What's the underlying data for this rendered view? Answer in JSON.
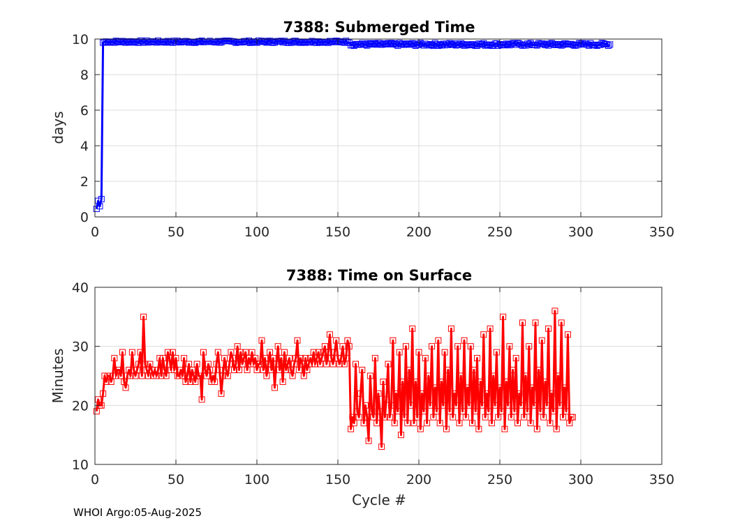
{
  "footer": "WHOI Argo:05-Aug-2025",
  "chart_data": [
    {
      "type": "line",
      "title": "7388: Submerged Time",
      "xlabel": "",
      "ylabel": "days",
      "xlim": [
        0,
        350
      ],
      "ylim": [
        0,
        10
      ],
      "xticks": [
        "0",
        "50",
        "100",
        "150",
        "200",
        "250",
        "300",
        "350"
      ],
      "yticks": [
        "0",
        "2",
        "4",
        "6",
        "8",
        "10"
      ],
      "grid": true,
      "color": "#0000ff",
      "marker": "square",
      "series": [
        {
          "name": "Submerged Time",
          "segments": [
            {
              "x_start": 1,
              "x_end": 1,
              "y": 0.45
            },
            {
              "x_start": 2,
              "x_end": 2,
              "y": 0.9
            },
            {
              "x_start": 3,
              "x_end": 3,
              "y": 0.6
            },
            {
              "x_start": 4,
              "x_end": 4,
              "y": 1.0
            },
            {
              "x_start": 5,
              "x_end": 5,
              "y": 9.8
            },
            {
              "x_start": 6,
              "x_end": 157,
              "y": 9.85,
              "jitter": 0.06
            },
            {
              "x_start": 158,
              "x_end": 318,
              "y": 9.7,
              "jitter": 0.08
            }
          ]
        }
      ]
    },
    {
      "type": "line",
      "title": "7388: Time on Surface",
      "xlabel": "Cycle #",
      "ylabel": "Minutes",
      "xlim": [
        0,
        350
      ],
      "ylim": [
        10,
        40
      ],
      "xticks": [
        "0",
        "50",
        "100",
        "150",
        "200",
        "250",
        "300",
        "350"
      ],
      "yticks": [
        "10",
        "20",
        "30",
        "40"
      ],
      "grid": true,
      "color": "#ff0000",
      "marker": "square",
      "series": [
        {
          "name": "Time on Surface",
          "values": [
            19,
            21,
            20,
            20,
            22,
            25,
            24,
            25,
            25,
            24,
            25,
            28,
            25,
            26,
            26,
            25,
            29,
            24,
            23,
            25,
            26,
            25,
            29,
            26,
            25,
            26,
            27,
            29,
            25,
            35,
            27,
            26,
            25,
            27,
            26,
            25,
            26,
            25,
            26,
            28,
            25,
            28,
            26,
            25,
            29,
            28,
            26,
            29,
            26,
            28,
            25,
            25,
            26,
            25,
            28,
            24,
            25,
            27,
            24,
            26,
            25,
            24,
            27,
            25,
            25,
            21,
            29,
            26,
            25,
            27,
            26,
            24,
            25,
            24,
            27,
            29,
            26,
            22,
            25,
            28,
            26,
            25,
            27,
            29,
            28,
            26,
            27,
            30,
            26,
            29,
            27,
            28,
            29,
            26,
            28,
            27,
            29,
            27,
            28,
            26,
            27,
            27,
            31,
            26,
            28,
            25,
            27,
            29,
            26,
            28,
            23,
            27,
            30,
            26,
            28,
            24,
            29,
            26,
            27,
            28,
            26,
            25,
            27,
            28,
            31,
            26,
            28,
            27,
            25,
            28,
            26,
            27,
            28,
            27,
            29,
            27,
            28,
            29,
            27,
            28,
            29,
            30,
            27,
            29,
            32,
            28,
            27,
            29,
            31,
            28,
            27,
            28,
            30,
            27,
            28,
            31,
            30,
            16,
            18,
            17,
            27,
            19,
            18,
            22,
            26,
            17,
            20,
            18,
            14,
            25,
            19,
            18,
            28,
            17,
            22,
            19,
            13,
            24,
            18,
            21,
            27,
            18,
            20,
            31,
            17,
            22,
            19,
            29,
            15,
            24,
            18,
            30,
            17,
            26,
            20,
            33,
            17,
            24,
            18,
            29,
            16,
            22,
            19,
            28,
            17,
            25,
            20,
            30,
            18,
            23,
            19,
            31,
            17,
            24,
            20,
            29,
            16,
            26,
            19,
            33,
            18,
            22,
            20,
            30,
            17,
            25,
            19,
            31,
            18,
            23,
            20,
            30,
            17,
            26,
            19,
            28,
            16,
            24,
            20,
            32,
            18,
            22,
            19,
            33,
            17,
            25,
            20,
            29,
            18,
            23,
            19,
            35,
            16,
            24,
            20,
            30,
            18,
            26,
            19,
            28,
            17,
            22,
            20,
            34,
            18,
            25,
            19,
            30,
            17,
            23,
            20,
            34,
            16,
            26,
            19,
            31,
            18,
            24,
            20,
            33,
            17,
            22,
            19,
            36,
            16,
            25,
            20,
            34,
            18,
            23,
            19,
            32,
            17,
            18,
            18
          ]
        }
      ]
    }
  ]
}
